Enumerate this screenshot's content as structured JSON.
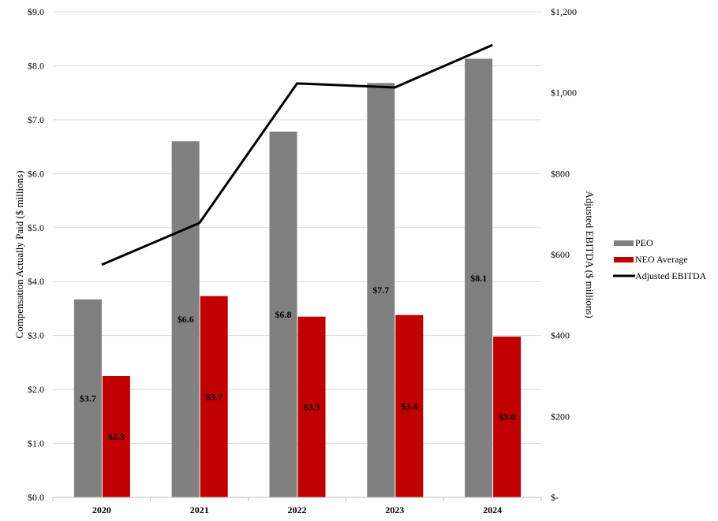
{
  "chart_data": {
    "type": "bar",
    "categories": [
      "2020",
      "2021",
      "2022",
      "2023",
      "2024"
    ],
    "series": [
      {
        "name": "PEO",
        "axis": "left",
        "kind": "bar",
        "color": "#808080",
        "values": [
          3.67,
          6.6,
          6.78,
          7.68,
          8.13
        ],
        "labels": [
          "$3.7",
          "$6.6",
          "$6.8",
          "$7.7",
          "$8.1"
        ]
      },
      {
        "name": "NEO Average",
        "axis": "left",
        "kind": "bar",
        "color": "#c00000",
        "values": [
          2.25,
          3.73,
          3.35,
          3.38,
          2.98
        ],
        "labels": [
          "$2.3",
          "$3.7",
          "$3.3",
          "$3.4",
          "$3.0"
        ]
      },
      {
        "name": "Adjusted EBITDA",
        "axis": "right",
        "kind": "line",
        "color": "#000000",
        "values": [
          575,
          678,
          1023,
          1013,
          1118
        ]
      }
    ],
    "ylabel": "Compensation Actually Paid ($ millions)",
    "y2label": "Adjusted EBITDA  ($ millions)",
    "ylim": [
      0,
      9
    ],
    "y2lim": [
      0,
      1200
    ],
    "yticks": [
      0,
      1,
      2,
      3,
      4,
      5,
      6,
      7,
      8,
      9
    ],
    "yticklabels": [
      "$0.0",
      "$1.0",
      "$2.0",
      "$3.0",
      "$4.0",
      "$5.0",
      "$6.0",
      "$7.0",
      "$8.0",
      "$9.0"
    ],
    "y2ticks": [
      0,
      200,
      400,
      600,
      800,
      1000,
      1200
    ],
    "y2ticklabels": [
      "$-",
      "$200",
      "$400",
      "$600",
      "$800",
      "$1,000",
      "$1,200"
    ],
    "grid": true,
    "legend": "right"
  }
}
